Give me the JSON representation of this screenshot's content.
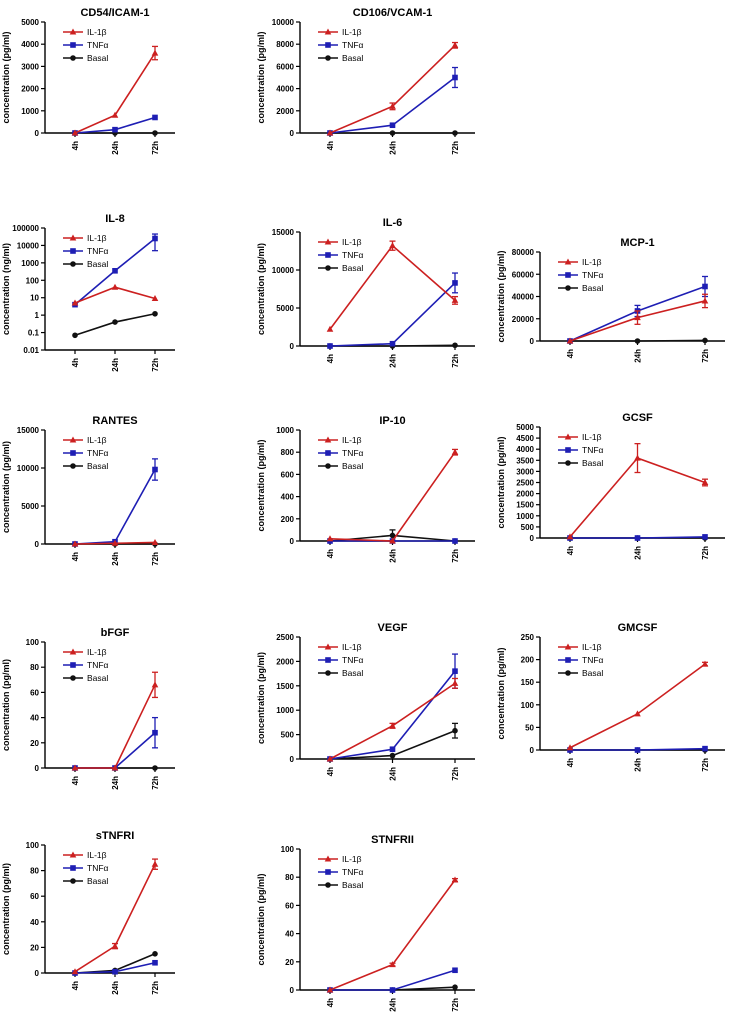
{
  "colors": {
    "il1b": "#cc2020",
    "tnfa": "#1e1eb4",
    "basal": "#111111"
  },
  "legend": [
    "IL-1β",
    "TNFα",
    "Basal"
  ],
  "chart_data": [
    {
      "title": "CD54/ICAM-1",
      "type": "line",
      "scale": "linear",
      "ylabel": "concentration (pg/ml)",
      "categories": [
        "4h",
        "24h",
        "72h"
      ],
      "yticks": [
        "0",
        "1000",
        "2000",
        "3000",
        "4000",
        "5000"
      ],
      "ylim": [
        0,
        5000
      ],
      "series": [
        {
          "name": "IL-1β",
          "values": [
            0,
            800,
            3600
          ],
          "errors": [
            0,
            0,
            300
          ]
        },
        {
          "name": "TNFα",
          "values": [
            0,
            150,
            700
          ],
          "errors": [
            0,
            0,
            0
          ]
        },
        {
          "name": "Basal",
          "values": [
            0,
            0,
            0
          ],
          "errors": [
            0,
            0,
            0
          ]
        }
      ]
    },
    {
      "title": "CD106/VCAM-1",
      "type": "line",
      "scale": "linear",
      "ylabel": "concentration (pg/ml)",
      "categories": [
        "4h",
        "24h",
        "72h"
      ],
      "yticks": [
        "0",
        "2000",
        "4000",
        "6000",
        "8000",
        "10000"
      ],
      "ylim": [
        0,
        10000
      ],
      "series": [
        {
          "name": "IL-1β",
          "values": [
            0,
            2400,
            7900
          ],
          "errors": [
            0,
            300,
            250
          ]
        },
        {
          "name": "TNFα",
          "values": [
            0,
            700,
            5000
          ],
          "errors": [
            0,
            0,
            900
          ]
        },
        {
          "name": "Basal",
          "values": [
            0,
            0,
            0
          ],
          "errors": [
            0,
            0,
            0
          ]
        }
      ]
    },
    {
      "title": "IL-8",
      "type": "line",
      "scale": "log",
      "ylabel": "concentration (ng/ml)",
      "categories": [
        "4h",
        "24h",
        "72h"
      ],
      "yticks": [
        "0.01",
        "0.1",
        "1",
        "10",
        "100",
        "1000",
        "10000",
        "100000"
      ],
      "ylim": [
        0.01,
        100000
      ],
      "series": [
        {
          "name": "IL-1β",
          "values": [
            5,
            40,
            9
          ],
          "errors": [
            0,
            0,
            0
          ]
        },
        {
          "name": "TNFα",
          "values": [
            4,
            350,
            25000
          ],
          "errors": [
            0,
            0,
            20000
          ]
        },
        {
          "name": "Basal",
          "values": [
            0.07,
            0.4,
            1.2
          ],
          "errors": [
            0,
            0,
            0
          ]
        }
      ]
    },
    {
      "title": "IL-6",
      "type": "line",
      "scale": "linear",
      "ylabel": "concentration (pg/ml)",
      "categories": [
        "4h",
        "24h",
        "72h"
      ],
      "yticks": [
        "0",
        "5000",
        "10000",
        "15000"
      ],
      "ylim": [
        0,
        15000
      ],
      "series": [
        {
          "name": "IL-1β",
          "values": [
            2200,
            13200,
            6000
          ],
          "errors": [
            0,
            600,
            500
          ]
        },
        {
          "name": "TNFα",
          "values": [
            0,
            300,
            8300
          ],
          "errors": [
            0,
            0,
            1300
          ]
        },
        {
          "name": "Basal",
          "values": [
            0,
            0,
            100
          ],
          "errors": [
            0,
            0,
            0
          ]
        }
      ]
    },
    {
      "title": "MCP-1",
      "type": "line",
      "scale": "linear",
      "ylabel": "concentration (pg/ml)",
      "categories": [
        "4h",
        "24h",
        "72h"
      ],
      "yticks": [
        "0",
        "20000",
        "40000",
        "60000",
        "80000"
      ],
      "ylim": [
        0,
        80000
      ],
      "series": [
        {
          "name": "IL-1β",
          "values": [
            0,
            21000,
            36000
          ],
          "errors": [
            0,
            6000,
            6000
          ]
        },
        {
          "name": "TNFα",
          "values": [
            0,
            27000,
            49000
          ],
          "errors": [
            0,
            5000,
            9000
          ]
        },
        {
          "name": "Basal",
          "values": [
            0,
            0,
            500
          ],
          "errors": [
            0,
            0,
            0
          ]
        }
      ]
    },
    {
      "title": "RANTES",
      "type": "line",
      "scale": "linear",
      "ylabel": "concentration (pg/ml)",
      "categories": [
        "4h",
        "24h",
        "72h"
      ],
      "yticks": [
        "0",
        "5000",
        "10000",
        "15000"
      ],
      "ylim": [
        0,
        15000
      ],
      "series": [
        {
          "name": "IL-1β",
          "values": [
            0,
            100,
            200
          ],
          "errors": [
            0,
            0,
            0
          ]
        },
        {
          "name": "TNFα",
          "values": [
            0,
            300,
            9800
          ],
          "errors": [
            0,
            0,
            1400
          ]
        },
        {
          "name": "Basal",
          "values": [
            0,
            0,
            0
          ],
          "errors": [
            0,
            0,
            0
          ]
        }
      ]
    },
    {
      "title": "IP-10",
      "type": "line",
      "scale": "linear",
      "ylabel": "concentration (pg/ml)",
      "categories": [
        "4h",
        "24h",
        "72h"
      ],
      "yticks": [
        "0",
        "200",
        "400",
        "600",
        "800",
        "1000"
      ],
      "ylim": [
        0,
        1000
      ],
      "series": [
        {
          "name": "IL-1β",
          "values": [
            20,
            0,
            800
          ],
          "errors": [
            0,
            0,
            25
          ]
        },
        {
          "name": "TNFα",
          "values": [
            0,
            0,
            0
          ],
          "errors": [
            0,
            0,
            0
          ]
        },
        {
          "name": "Basal",
          "values": [
            0,
            50,
            0
          ],
          "errors": [
            0,
            50,
            0
          ]
        }
      ]
    },
    {
      "title": "GCSF",
      "type": "line",
      "scale": "linear",
      "ylabel": "concentration (pg/ml)",
      "categories": [
        "4h",
        "24h",
        "72h"
      ],
      "yticks": [
        "0",
        "500",
        "1000",
        "1500",
        "2000",
        "2500",
        "3000",
        "3500",
        "4000",
        "4500",
        "5000"
      ],
      "ylim": [
        0,
        5000
      ],
      "series": [
        {
          "name": "IL-1β",
          "values": [
            50,
            3600,
            2500
          ],
          "errors": [
            0,
            650,
            150
          ]
        },
        {
          "name": "TNFα",
          "values": [
            0,
            0,
            50
          ],
          "errors": [
            0,
            0,
            0
          ]
        },
        {
          "name": "Basal",
          "values": [
            0,
            0,
            0
          ],
          "errors": [
            0,
            0,
            0
          ]
        }
      ]
    },
    {
      "title": "bFGF",
      "type": "line",
      "scale": "linear",
      "ylabel": "concentration (pg/ml)",
      "categories": [
        "4h",
        "24h",
        "72h"
      ],
      "yticks": [
        "0",
        "20",
        "40",
        "60",
        "80",
        "100"
      ],
      "ylim": [
        0,
        100
      ],
      "series": [
        {
          "name": "IL-1β",
          "values": [
            0,
            0,
            66
          ],
          "errors": [
            0,
            0,
            10
          ]
        },
        {
          "name": "TNFα",
          "values": [
            0,
            0,
            28
          ],
          "errors": [
            0,
            0,
            12
          ]
        },
        {
          "name": "Basal",
          "values": [
            0,
            0,
            0
          ],
          "errors": [
            0,
            0,
            0
          ]
        }
      ]
    },
    {
      "title": "VEGF",
      "type": "line",
      "scale": "linear",
      "ylabel": "concentration (pg/ml)",
      "categories": [
        "4h",
        "24h",
        "72h"
      ],
      "yticks": [
        "0",
        "500",
        "1000",
        "1500",
        "2000",
        "2500"
      ],
      "ylim": [
        0,
        2500
      ],
      "series": [
        {
          "name": "IL-1β",
          "values": [
            0,
            680,
            1550
          ],
          "errors": [
            0,
            50,
            100
          ]
        },
        {
          "name": "TNFα",
          "values": [
            0,
            200,
            1800
          ],
          "errors": [
            0,
            0,
            350
          ]
        },
        {
          "name": "Basal",
          "values": [
            0,
            70,
            580
          ],
          "errors": [
            0,
            0,
            150
          ]
        }
      ]
    },
    {
      "title": "GMCSF",
      "type": "line",
      "scale": "linear",
      "ylabel": "concentration (pg/ml)",
      "categories": [
        "4h",
        "24h",
        "72h"
      ],
      "yticks": [
        "0",
        "50",
        "100",
        "150",
        "200",
        "250"
      ],
      "ylim": [
        0,
        250
      ],
      "series": [
        {
          "name": "IL-1β",
          "values": [
            5,
            80,
            190
          ],
          "errors": [
            0,
            0,
            4
          ]
        },
        {
          "name": "TNFα",
          "values": [
            0,
            0,
            3
          ],
          "errors": [
            0,
            0,
            0
          ]
        },
        {
          "name": "Basal",
          "values": [
            0,
            0,
            0
          ],
          "errors": [
            0,
            0,
            0
          ]
        }
      ]
    },
    {
      "title": "sTNFRI",
      "type": "line",
      "scale": "linear",
      "ylabel": "concentration (pg/ml)",
      "categories": [
        "4h",
        "24h",
        "72h"
      ],
      "yticks": [
        "0",
        "20",
        "40",
        "60",
        "80",
        "100"
      ],
      "ylim": [
        0,
        100
      ],
      "series": [
        {
          "name": "IL-1β",
          "values": [
            1,
            21,
            85
          ],
          "errors": [
            0,
            2,
            4
          ]
        },
        {
          "name": "TNFα",
          "values": [
            0,
            1,
            8
          ],
          "errors": [
            0,
            0,
            0
          ]
        },
        {
          "name": "Basal",
          "values": [
            0,
            2,
            15
          ],
          "errors": [
            0,
            0,
            0
          ]
        }
      ]
    },
    {
      "title": "STNFRII",
      "type": "line",
      "scale": "linear",
      "ylabel": "concentration (pg/ml)",
      "categories": [
        "4h",
        "24h",
        "72h"
      ],
      "yticks": [
        "0",
        "20",
        "40",
        "60",
        "80",
        "100"
      ],
      "ylim": [
        0,
        100
      ],
      "series": [
        {
          "name": "IL-1β",
          "values": [
            0,
            18,
            78
          ],
          "errors": [
            0,
            1,
            1
          ]
        },
        {
          "name": "TNFα",
          "values": [
            0,
            0,
            14
          ],
          "errors": [
            0,
            0,
            0
          ]
        },
        {
          "name": "Basal",
          "values": [
            0,
            0,
            2
          ],
          "errors": [
            0,
            0,
            0
          ]
        }
      ]
    }
  ]
}
